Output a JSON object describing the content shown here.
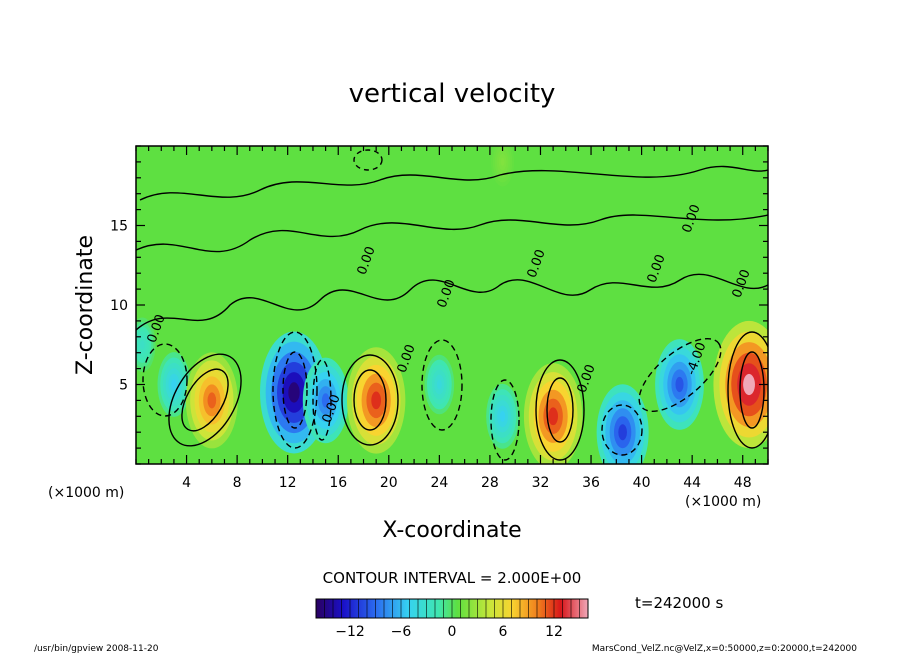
{
  "chart_data": {
    "type": "heatmap",
    "title": "vertical velocity",
    "xlabel": "X-coordinate",
    "ylabel": "Z-coordinate",
    "x_unit": "(×1000 m)",
    "x_unit_right": "(×1000 m)",
    "xlim": [
      0,
      50
    ],
    "ylim": [
      0,
      20
    ],
    "xticks": [
      4,
      8,
      12,
      16,
      20,
      24,
      28,
      32,
      36,
      40,
      44,
      48
    ],
    "yticks": [
      5,
      10,
      15
    ],
    "contour_interval_label": "CONTOUR INTERVAL = 2.000E+00",
    "contour_labels": [
      "0.00",
      "0.00",
      "0.00",
      "0.00",
      "0.00",
      "0.00",
      "0.00",
      "0.00",
      "0.00",
      "0.00",
      "-4.00"
    ],
    "colorbar": {
      "range": [
        -16,
        16
      ],
      "ticks": [
        "−12",
        "−6",
        "0",
        "6",
        "12"
      ],
      "tick_values": [
        -12,
        -6,
        0,
        6,
        12
      ]
    },
    "time_label": "t=242000 s",
    "cells": [
      {
        "x": 0.5,
        "z": 7.5,
        "w": -2
      },
      {
        "x": 3,
        "z": 5,
        "w": -4
      },
      {
        "x": 6,
        "z": 4,
        "w": 10
      },
      {
        "x": 12.5,
        "z": 4.5,
        "w": -15
      },
      {
        "x": 15,
        "z": 4,
        "w": -8
      },
      {
        "x": 19,
        "z": 4,
        "w": 12
      },
      {
        "x": 24,
        "z": 5,
        "w": -3
      },
      {
        "x": 29,
        "z": 3,
        "w": -4
      },
      {
        "x": 33,
        "z": 3,
        "w": 12
      },
      {
        "x": 38.5,
        "z": 2,
        "w": -10
      },
      {
        "x": 43,
        "z": 5,
        "w": -9
      },
      {
        "x": 48.5,
        "z": 5,
        "w": 16
      },
      {
        "x": 29,
        "z": 19,
        "w": 1
      }
    ]
  },
  "footer": {
    "left": "/usr/bin/gpview   2008-11-20",
    "right": "MarsCond_VelZ.nc@VelZ,x=0:50000,z=0:20000,t=242000"
  },
  "colors": {
    "background_field": "#5ee041",
    "frame": "#000000"
  }
}
